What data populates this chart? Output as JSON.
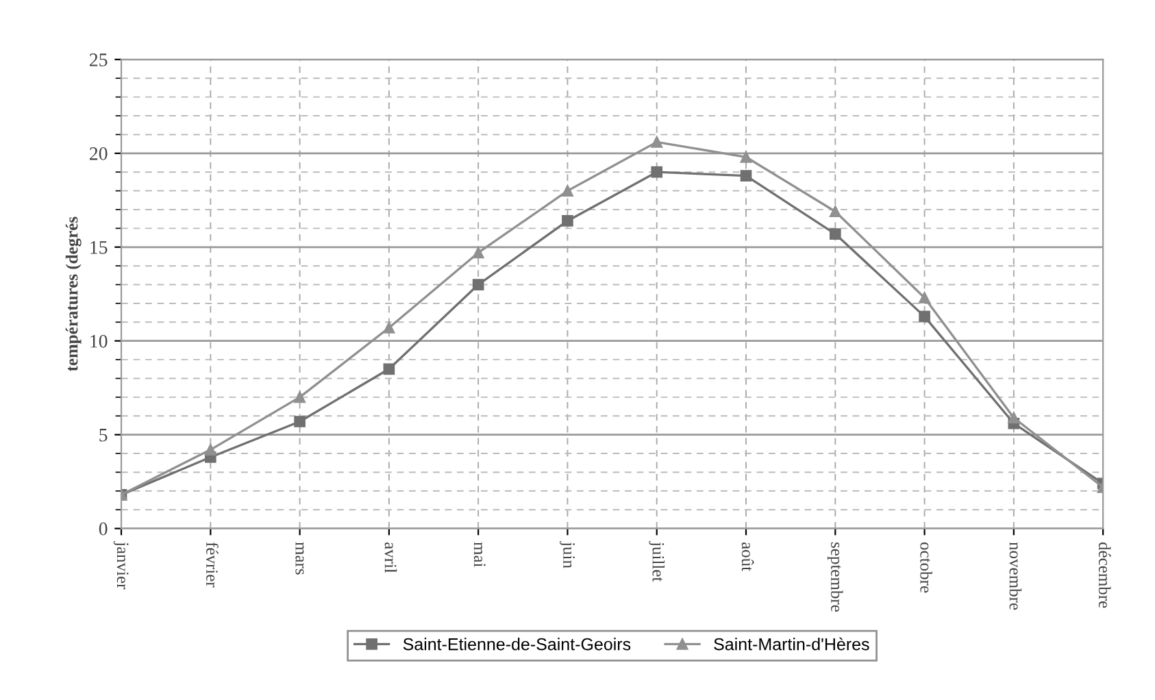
{
  "chart_data": {
    "type": "line",
    "ylabel": "températures (degrés",
    "categories": [
      "janvier",
      "février",
      "mars",
      "avril",
      "mai",
      "juin",
      "juillet",
      "août",
      "septembre",
      "octobre",
      "novembre",
      "décembre"
    ],
    "series": [
      {
        "name": "Saint-Etienne-de-Saint-Geoirs",
        "color": "#707070",
        "marker": "square",
        "values": [
          1.8,
          3.8,
          5.7,
          8.5,
          13.0,
          16.4,
          19.0,
          18.8,
          15.7,
          11.3,
          5.6,
          2.4
        ]
      },
      {
        "name": "Saint-Martin-d'Hères",
        "color": "#909090",
        "marker": "triangle",
        "values": [
          1.8,
          4.2,
          7.0,
          10.7,
          14.7,
          18.0,
          20.6,
          19.8,
          16.9,
          12.3,
          5.9,
          2.2
        ]
      }
    ],
    "ylim": [
      0,
      25
    ],
    "yticks": [
      0,
      5,
      10,
      15,
      20,
      25
    ],
    "grid": true,
    "legend": "bottom",
    "line_style": "solid"
  }
}
